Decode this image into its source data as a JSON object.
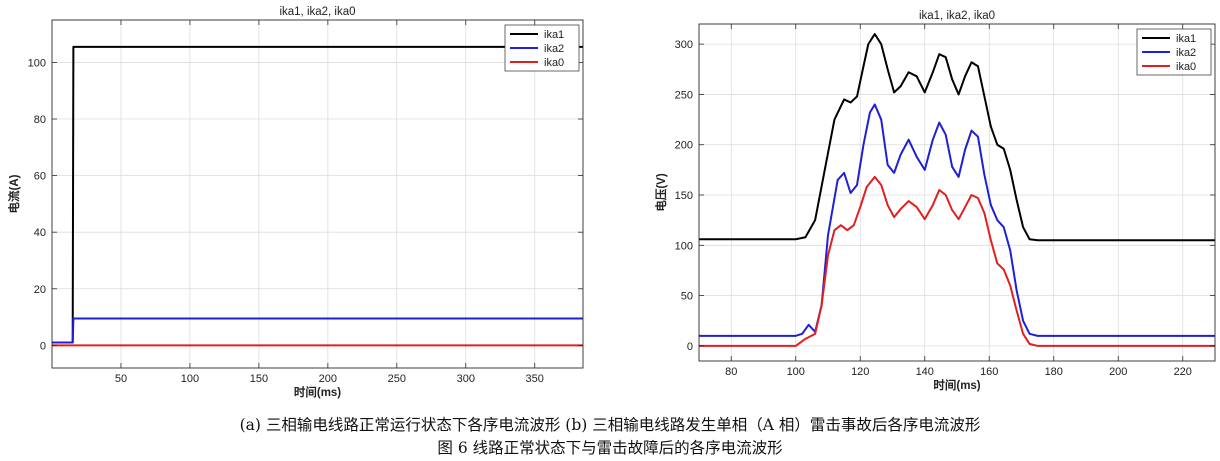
{
  "chart_data": [
    {
      "type": "line",
      "title": "ika1, ika2, ika0",
      "xlabel": "时间(ms)",
      "ylabel": "电流(A)",
      "xlim": [
        0,
        385
      ],
      "ylim": [
        -8,
        115
      ],
      "xticks": [
        50,
        100,
        150,
        200,
        250,
        300,
        350
      ],
      "yticks": [
        0,
        20,
        40,
        60,
        80,
        100
      ],
      "grid": true,
      "legend": "top-right",
      "series": [
        {
          "name": "ika1",
          "color": "#000000",
          "x": [
            0,
            15,
            15.5,
            385
          ],
          "y": [
            1,
            1,
            105.5,
            105.5
          ]
        },
        {
          "name": "ika2",
          "color": "#1f1fd6",
          "x": [
            0,
            15,
            15.5,
            385
          ],
          "y": [
            1,
            1,
            9.5,
            9.5
          ]
        },
        {
          "name": "ika0",
          "color": "#e0201e",
          "x": [
            0,
            15,
            15.5,
            385
          ],
          "y": [
            0,
            0,
            0,
            0
          ]
        }
      ]
    },
    {
      "type": "line",
      "title": "ika1, ika2, ika0",
      "xlabel": "时间(ms)",
      "ylabel": "电压(V)",
      "xlim": [
        70,
        230
      ],
      "ylim": [
        -15,
        320
      ],
      "xticks": [
        80,
        100,
        120,
        140,
        160,
        180,
        200,
        220
      ],
      "yticks": [
        0,
        50,
        100,
        150,
        200,
        250,
        300
      ],
      "grid": true,
      "legend": "top-right",
      "series": [
        {
          "name": "ika1",
          "color": "#000000",
          "x": [
            70,
            100,
            103,
            106,
            109,
            112,
            115,
            117,
            119,
            121,
            122.5,
            124.5,
            126.5,
            128.5,
            130.5,
            132.5,
            135,
            137.5,
            140,
            142.5,
            144.5,
            146.5,
            148.5,
            150.5,
            152.5,
            154.5,
            156.5,
            158.5,
            160.5,
            162.5,
            164.5,
            166.5,
            168.5,
            170.5,
            172.5,
            175,
            230
          ],
          "y": [
            106,
            106,
            108,
            125,
            175,
            225,
            245,
            242,
            248,
            278,
            300,
            310,
            300,
            275,
            252,
            258,
            272,
            268,
            252,
            272,
            290,
            287,
            265,
            250,
            268,
            282,
            278,
            248,
            218,
            200,
            196,
            175,
            145,
            118,
            106,
            105,
            105
          ]
        },
        {
          "name": "ika2",
          "color": "#1f1fd6",
          "x": [
            70,
            100,
            102,
            104,
            106,
            108,
            110,
            113,
            115,
            117,
            119,
            121,
            123,
            124.5,
            126.5,
            128.5,
            130.5,
            132.5,
            135,
            137.5,
            140,
            142.5,
            144.5,
            146.5,
            148.5,
            150.5,
            152.5,
            154.5,
            156.5,
            158.5,
            160.5,
            162.5,
            164.5,
            166.5,
            168.5,
            170.5,
            172.5,
            175,
            230
          ],
          "y": [
            10,
            10,
            12,
            21,
            14,
            40,
            110,
            165,
            172,
            152,
            160,
            200,
            232,
            240,
            225,
            180,
            172,
            190,
            205,
            188,
            175,
            205,
            222,
            210,
            178,
            168,
            195,
            214,
            208,
            170,
            140,
            125,
            118,
            95,
            55,
            25,
            12,
            10,
            10
          ]
        },
        {
          "name": "ika0",
          "color": "#e0201e",
          "x": [
            70,
            100,
            103,
            106,
            108,
            110,
            112,
            114,
            116,
            118,
            120,
            122,
            124.5,
            126.5,
            128.5,
            130.5,
            132.5,
            135,
            137.5,
            140,
            142.5,
            144.5,
            146.5,
            148.5,
            150.5,
            152.5,
            154.5,
            156.5,
            158.5,
            160.5,
            162.5,
            164.5,
            166.5,
            168.5,
            170.5,
            172.5,
            175,
            230
          ],
          "y": [
            0,
            0,
            7,
            12,
            40,
            90,
            115,
            120,
            115,
            120,
            138,
            158,
            168,
            160,
            140,
            128,
            136,
            144,
            138,
            126,
            140,
            155,
            150,
            135,
            126,
            138,
            150,
            147,
            132,
            105,
            82,
            76,
            60,
            35,
            12,
            2,
            0,
            0
          ]
        }
      ]
    }
  ],
  "captions": {
    "sub": "(a)  三相输电线路正常运行状态下各序电流波形    (b)  三相输电线路发生单相（A 相）雷击事故后各序电流波形",
    "main": "图 6  线路正常状态下与雷击故障后的各序电流波形"
  }
}
